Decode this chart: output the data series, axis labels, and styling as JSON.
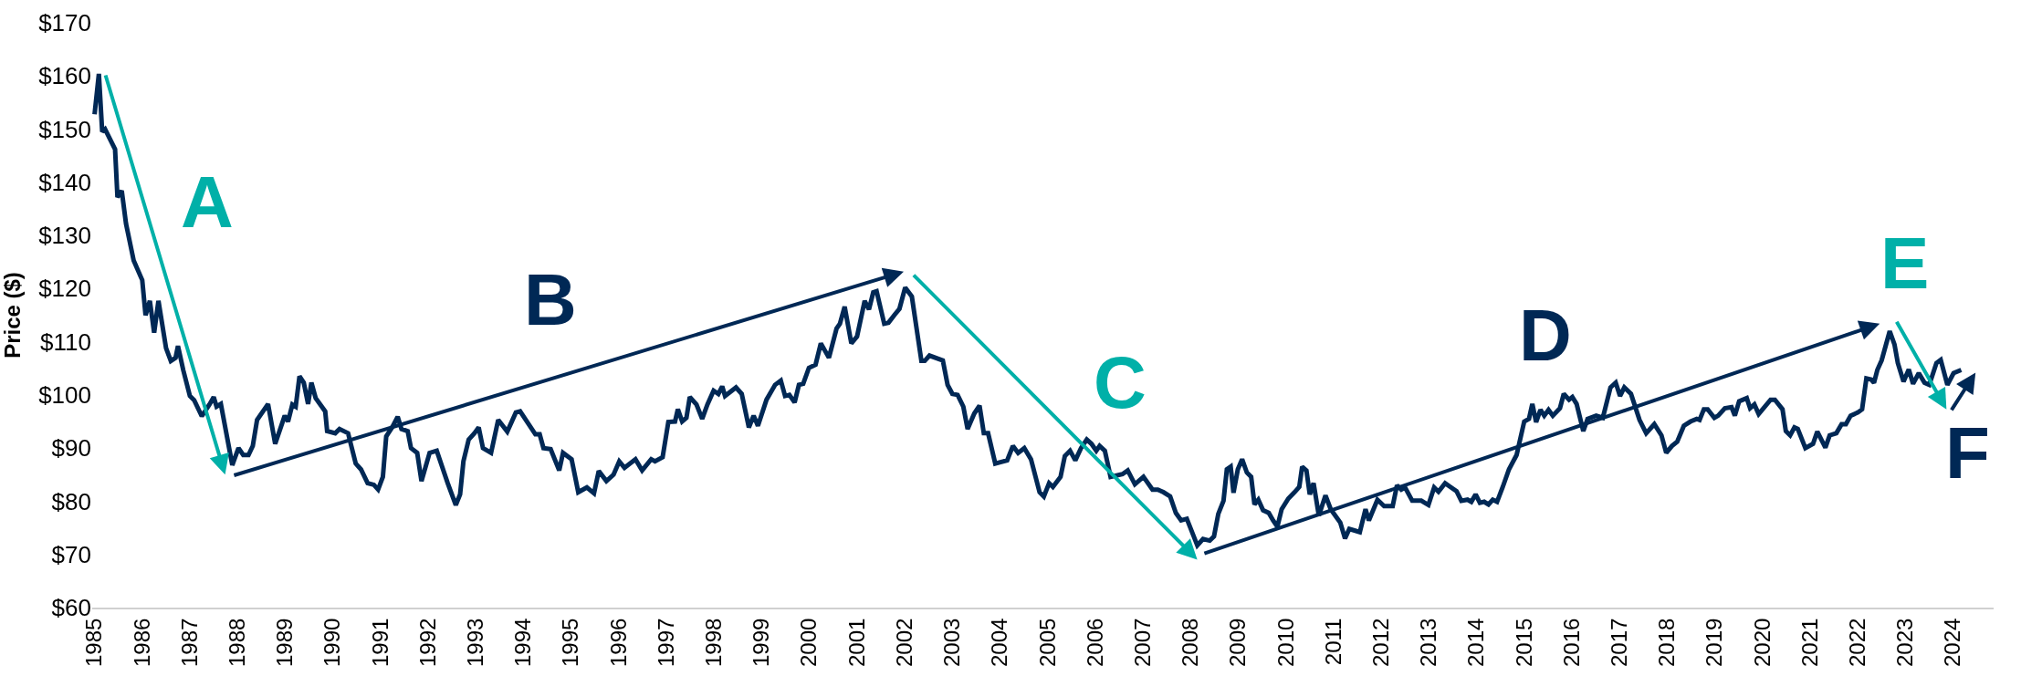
{
  "chart_data": {
    "type": "line",
    "ylabel": "Price ($)",
    "xlim": [
      1984.95,
      2024.85
    ],
    "xticks": [
      1985,
      1986,
      1987,
      1988,
      1989,
      1990,
      1991,
      1992,
      1993,
      1994,
      1995,
      1996,
      1997,
      1998,
      1999,
      2000,
      2001,
      2002,
      2003,
      2004,
      2005,
      2006,
      2007,
      2008,
      2009,
      2010,
      2011,
      2012,
      2013,
      2014,
      2015,
      2016,
      2017,
      2018,
      2019,
      2020,
      2021,
      2022,
      2023,
      2024
    ],
    "ylim": [
      60,
      170
    ],
    "yticks": [
      {
        "value": 60,
        "label": "$60"
      },
      {
        "value": 70,
        "label": "$70"
      },
      {
        "value": 80,
        "label": "$80"
      },
      {
        "value": 90,
        "label": "$90"
      },
      {
        "value": 100,
        "label": "$100"
      },
      {
        "value": 110,
        "label": "$110"
      },
      {
        "value": 120,
        "label": "$120"
      },
      {
        "value": 130,
        "label": "$130"
      },
      {
        "value": 140,
        "label": "$140"
      },
      {
        "value": 150,
        "label": "$150"
      },
      {
        "value": 160,
        "label": "$160"
      },
      {
        "value": 170,
        "label": "$170"
      }
    ],
    "series": [
      {
        "color": "#002855",
        "x": [
          1985.0,
          1985.09,
          1985.16,
          1985.22,
          1985.43,
          1985.48,
          1985.57,
          1985.66,
          1985.82,
          1986.0,
          1986.07,
          1986.16,
          1986.25,
          1986.34,
          1986.5,
          1986.6,
          1986.7,
          1986.75,
          1986.86,
          1987.0,
          1987.09,
          1987.25,
          1987.41,
          1987.5,
          1987.56,
          1987.65,
          1987.89,
          1988.02,
          1988.12,
          1988.23,
          1988.32,
          1988.41,
          1988.64,
          1988.79,
          1988.99,
          1989.06,
          1989.15,
          1989.22,
          1989.3,
          1989.39,
          1989.48,
          1989.55,
          1989.64,
          1989.84,
          1989.88,
          1990.05,
          1990.14,
          1990.32,
          1990.48,
          1990.59,
          1990.73,
          1990.86,
          1990.95,
          1991.05,
          1991.12,
          1991.25,
          1991.36,
          1991.44,
          1991.57,
          1991.64,
          1991.77,
          1991.86,
          1992.03,
          1992.18,
          1992.41,
          1992.58,
          1992.67,
          1992.74,
          1992.85,
          1992.97,
          1993.06,
          1993.15,
          1993.32,
          1993.47,
          1993.66,
          1993.84,
          1993.93,
          1994.25,
          1994.34,
          1994.42,
          1994.57,
          1994.75,
          1994.83,
          1995.01,
          1995.15,
          1995.33,
          1995.48,
          1995.58,
          1995.74,
          1995.89,
          1996.01,
          1996.12,
          1996.35,
          1996.49,
          1996.68,
          1996.76,
          1996.92,
          1997.04,
          1997.18,
          1997.24,
          1997.33,
          1997.42,
          1997.49,
          1997.63,
          1997.75,
          1997.86,
          1997.99,
          1998.09,
          1998.17,
          1998.23,
          1998.46,
          1998.58,
          1998.73,
          1998.83,
          1998.92,
          1999.1,
          1999.28,
          1999.4,
          1999.49,
          1999.58,
          1999.69,
          1999.78,
          1999.87,
          1999.99,
          2000.13,
          2000.24,
          2000.41,
          2000.57,
          2000.64,
          2000.74,
          2000.88,
          2001.0,
          2001.16,
          2001.25,
          2001.34,
          2001.41,
          2001.57,
          2001.66,
          2001.8,
          2001.89,
          2002.01,
          2002.15,
          2002.35,
          2002.42,
          2002.52,
          2002.8,
          2002.9,
          2003.0,
          2003.11,
          2003.23,
          2003.32,
          2003.46,
          2003.57,
          2003.66,
          2003.75,
          2003.9,
          2004.15,
          2004.27,
          2004.38,
          2004.51,
          2004.65,
          2004.83,
          2004.92,
          2005.03,
          2005.11,
          2005.27,
          2005.36,
          2005.47,
          2005.58,
          2005.7,
          2005.82,
          2005.92,
          2006.02,
          2006.09,
          2006.2,
          2006.32,
          2006.57,
          2006.68,
          2006.83,
          2007.01,
          2007.2,
          2007.31,
          2007.43,
          2007.57,
          2007.69,
          2007.8,
          2007.92,
          2008.14,
          2008.26,
          2008.4,
          2008.49,
          2008.58,
          2008.69,
          2008.76,
          2008.84,
          2008.9,
          2008.99,
          2009.08,
          2009.18,
          2009.27,
          2009.34,
          2009.42,
          2009.52,
          2009.64,
          2009.73,
          2009.82,
          2009.91,
          2010.05,
          2010.18,
          2010.28,
          2010.34,
          2010.43,
          2010.5,
          2010.58,
          2010.69,
          2010.83,
          2010.94,
          2011.14,
          2011.24,
          2011.33,
          2011.55,
          2011.67,
          2011.74,
          2011.92,
          2012.06,
          2012.24,
          2012.33,
          2012.42,
          2012.5,
          2012.65,
          2012.84,
          2012.99,
          2013.11,
          2013.2,
          2013.34,
          2013.45,
          2013.58,
          2013.68,
          2013.81,
          2013.89,
          2013.98,
          2014.07,
          2014.16,
          2014.25,
          2014.34,
          2014.43,
          2014.55,
          2014.68,
          2014.84,
          2015.0,
          2015.1,
          2015.17,
          2015.25,
          2015.34,
          2015.42,
          2015.51,
          2015.6,
          2015.75,
          2015.83,
          2015.94,
          2016.01,
          2016.1,
          2016.24,
          2016.33,
          2016.51,
          2016.65,
          2016.81,
          2016.92,
          2017.01,
          2017.1,
          2017.24,
          2017.42,
          2017.56,
          2017.73,
          2017.88,
          2017.98,
          2018.1,
          2018.21,
          2018.35,
          2018.49,
          2018.62,
          2018.68,
          2018.77,
          2018.85,
          2018.99,
          2019.07,
          2019.21,
          2019.35,
          2019.42,
          2019.51,
          2019.67,
          2019.74,
          2019.83,
          2019.92,
          2020.17,
          2020.26,
          2020.42,
          2020.49,
          2020.58,
          2020.67,
          2020.74,
          2020.9,
          2021.06,
          2021.15,
          2021.32,
          2021.41,
          2021.55,
          2021.66,
          2021.75,
          2021.85,
          2022.0,
          2022.09,
          2022.18,
          2022.28,
          2022.34,
          2022.41,
          2022.5,
          2022.67,
          2022.77,
          2022.84,
          2022.96,
          2023.07,
          2023.16,
          2023.28,
          2023.4,
          2023.5,
          2023.65,
          2023.74,
          2023.88,
          2024.01,
          2024.17
        ],
        "values": [
          152.8,
          160.4,
          149.5,
          150,
          146.2,
          137.2,
          138.4,
          132.2,
          125.3,
          121.6,
          115,
          117.7,
          111.7,
          117.7,
          108.8,
          106.4,
          107,
          109.2,
          104.7,
          99.8,
          99,
          96,
          98.2,
          99.6,
          97.8,
          98.3,
          86.8,
          90,
          88.7,
          88.7,
          90.4,
          95.3,
          98.3,
          90.8,
          96.1,
          95,
          98.2,
          97.8,
          103.5,
          102.3,
          98.3,
          102.3,
          99.4,
          96.9,
          93.2,
          92.8,
          93.6,
          92.8,
          87.1,
          86,
          83.4,
          83.1,
          82.2,
          84.6,
          92.2,
          94,
          95.9,
          93.6,
          93.2,
          90,
          89.1,
          83.8,
          89.1,
          89.5,
          83.4,
          79.3,
          81.3,
          87.5,
          91.6,
          92.8,
          93.9,
          90,
          89.1,
          95.3,
          93.1,
          96.7,
          96.9,
          92.6,
          92.6,
          90,
          89.8,
          85.8,
          89.1,
          87.9,
          81.7,
          82.6,
          81.5,
          85.7,
          83.8,
          85,
          87.5,
          86.3,
          87.9,
          85.8,
          87.9,
          87.5,
          88.3,
          94.9,
          95,
          97.3,
          95,
          95.7,
          99.6,
          98.2,
          95.5,
          98.2,
          100.8,
          100.2,
          101.6,
          99.8,
          101.4,
          100.2,
          93.9,
          96.1,
          94.2,
          99.1,
          101.9,
          102.7,
          99.8,
          100,
          98.6,
          101.9,
          102.1,
          105.1,
          105.7,
          109.7,
          107,
          112.5,
          113.4,
          116.6,
          109.7,
          111,
          117.7,
          116.1,
          119.3,
          119.5,
          113.4,
          113.6,
          115.2,
          116.2,
          120.2,
          118.5,
          106.4,
          106.4,
          107.4,
          106.5,
          101.9,
          100.2,
          100,
          97.8,
          93.6,
          96.5,
          98,
          92.8,
          92.8,
          87.1,
          87.7,
          90.4,
          89.1,
          90,
          87.9,
          81.7,
          80.9,
          83.4,
          82.7,
          84.6,
          88.5,
          89.5,
          87.7,
          90,
          91.6,
          90.8,
          89.5,
          90.4,
          89.5,
          84.6,
          85.1,
          85.8,
          83.2,
          84.6,
          82.2,
          82.2,
          81.7,
          80.9,
          77.8,
          76.4,
          76.7,
          71.7,
          72.9,
          72.6,
          73.4,
          77.6,
          80.1,
          86,
          86.5,
          81.6,
          86,
          87.9,
          85.4,
          84.6,
          79.4,
          80.3,
          78.3,
          77.8,
          76.4,
          75.2,
          78.5,
          80.5,
          81.7,
          82.7,
          86.5,
          85.8,
          81.3,
          83.4,
          77.3,
          81.1,
          78.5,
          76,
          73,
          74.8,
          74.2,
          78.5,
          76.4,
          80.3,
          79.1,
          79.1,
          83,
          82.2,
          82.6,
          80.1,
          80.1,
          79.3,
          82.6,
          81.8,
          83.4,
          82.7,
          81.9,
          80.1,
          80.3,
          79.9,
          81.3,
          79.7,
          79.9,
          79.4,
          80.3,
          79.9,
          82.7,
          86,
          88.7,
          95,
          95.5,
          98.3,
          94.9,
          97.2,
          96.1,
          97.2,
          96.1,
          97.5,
          100.2,
          99.1,
          99.6,
          98.3,
          93.2,
          95.5,
          96.1,
          95.7,
          101.4,
          102.3,
          99.8,
          101.4,
          100.2,
          95.3,
          92.8,
          94.5,
          92.4,
          89.1,
          90.4,
          91.2,
          94.2,
          95,
          95.5,
          95.3,
          97.3,
          97.3,
          95.7,
          96.1,
          97.5,
          97.7,
          96.1,
          98.8,
          99.4,
          97.5,
          98.2,
          96.4,
          99.1,
          99.1,
          97.3,
          93.2,
          92.4,
          93.9,
          93.6,
          90,
          90.8,
          93.1,
          90.1,
          92.4,
          92.8,
          94.5,
          94.5,
          96.1,
          96.7,
          97.3,
          103.1,
          102.9,
          102.3,
          104.7,
          106.5,
          112,
          109.5,
          106,
          102.5,
          104.8,
          102.1,
          104.1,
          102.3,
          101.9,
          106,
          106.6,
          101.9,
          104.1,
          104.7
        ]
      }
    ],
    "annotations": [
      "A",
      "B",
      "C",
      "D",
      "E",
      "F"
    ]
  }
}
